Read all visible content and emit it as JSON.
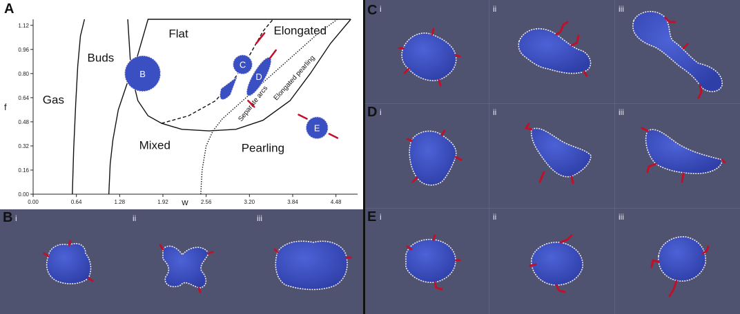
{
  "panel_a": {
    "letter": "A",
    "xlabel": "w",
    "ylabel": "f",
    "x_ticks": [
      "0.00",
      "0.64",
      "1.28",
      "1.92",
      "2.56",
      "3.20",
      "3.84",
      "4.48"
    ],
    "y_ticks": [
      "0.00",
      "0.16",
      "0.32",
      "0.48",
      "0.64",
      "0.80",
      "0.96",
      "1.12"
    ],
    "regions": [
      "Gas",
      "Buds",
      "Flat",
      "Elongated",
      "Mixed",
      "Pearling"
    ],
    "line_labels": [
      "Separate arcs",
      "Elongated pearling"
    ],
    "shape_labels": [
      "B",
      "C",
      "D",
      "E"
    ]
  },
  "chart_data": {
    "type": "line",
    "title": "",
    "xlabel": "w",
    "ylabel": "f",
    "xlim": [
      0.0,
      4.8
    ],
    "ylim": [
      0.0,
      1.16
    ],
    "series": [
      {
        "style": "solid",
        "x": [
          0.58,
          0.6,
          0.63,
          0.66,
          0.7,
          0.76
        ],
        "y": [
          0.0,
          0.3,
          0.6,
          0.85,
          1.05,
          1.16
        ]
      },
      {
        "style": "solid",
        "x": [
          1.12,
          1.14,
          1.18,
          1.22,
          1.26,
          1.32,
          1.38,
          1.44,
          1.52,
          1.7,
          2.0,
          2.4,
          2.8,
          3.2,
          3.6,
          4.0,
          4.4,
          4.7
        ],
        "y": [
          0.0,
          0.2,
          0.36,
          0.46,
          0.56,
          0.64,
          0.72,
          0.8,
          0.88,
          1.16,
          1.16,
          1.16,
          1.16,
          1.16,
          1.16,
          1.16,
          1.16,
          1.16
        ]
      },
      {
        "style": "solid",
        "x": [
          1.4,
          1.45,
          1.55,
          1.7,
          1.9,
          2.2,
          2.6,
          3.0,
          3.4,
          3.8,
          4.1,
          4.4,
          4.7
        ],
        "y": [
          1.16,
          0.8,
          0.62,
          0.52,
          0.47,
          0.43,
          0.42,
          0.43,
          0.49,
          0.62,
          0.8,
          1.0,
          1.16
        ]
      },
      {
        "style": "dashed",
        "x": [
          1.9,
          2.3,
          2.7,
          3.0,
          3.2,
          3.4,
          3.55
        ],
        "y": [
          0.47,
          0.52,
          0.62,
          0.78,
          0.92,
          1.08,
          1.16
        ]
      },
      {
        "style": "dotted",
        "x": [
          2.48,
          2.5,
          2.56,
          2.66,
          2.8,
          3.0,
          3.3,
          3.6,
          3.9,
          4.2,
          4.5
        ],
        "y": [
          0.0,
          0.16,
          0.32,
          0.42,
          0.5,
          0.58,
          0.7,
          0.82,
          0.94,
          1.06,
          1.16
        ]
      }
    ],
    "grid": false
  },
  "panels": {
    "b": {
      "letter": "B",
      "subs": [
        "i",
        "ii",
        "iii"
      ]
    },
    "c": {
      "letter": "C",
      "subs": [
        "i",
        "ii",
        "iii"
      ]
    },
    "d": {
      "letter": "D",
      "subs": [
        "i",
        "ii",
        "iii"
      ]
    },
    "e": {
      "letter": "E",
      "subs": [
        "i",
        "ii",
        "iii"
      ]
    }
  },
  "colors": {
    "membrane": "#3a4fc2",
    "rim": "#f0f0f0",
    "protein": "#c0102a",
    "background": "#4f5370"
  }
}
